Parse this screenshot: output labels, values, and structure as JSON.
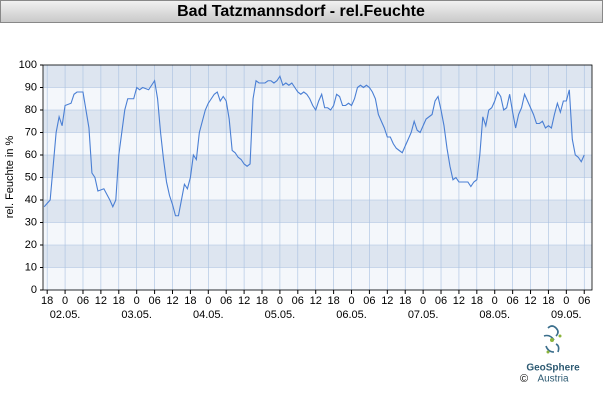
{
  "chart_data": {
    "type": "line",
    "title": "Bad Tatzmannsdorf - rel.Feuchte",
    "ylabel": "rel. Feuchte in %",
    "ylim": [
      0,
      100
    ],
    "yticks": [
      0,
      10,
      20,
      30,
      40,
      50,
      60,
      70,
      80,
      90,
      100
    ],
    "grid": true,
    "xlim": [
      16.6,
      200.6
    ],
    "xticks": [
      {
        "value": 18,
        "label": "18"
      },
      {
        "value": 24,
        "label": "0"
      },
      {
        "value": 30,
        "label": "06"
      },
      {
        "value": 36,
        "label": "12"
      },
      {
        "value": 42,
        "label": "18"
      },
      {
        "value": 48,
        "label": "0"
      },
      {
        "value": 54,
        "label": "06"
      },
      {
        "value": 60,
        "label": "12"
      },
      {
        "value": 66,
        "label": "18"
      },
      {
        "value": 72,
        "label": "0"
      },
      {
        "value": 78,
        "label": "06"
      },
      {
        "value": 84,
        "label": "12"
      },
      {
        "value": 90,
        "label": "18"
      },
      {
        "value": 96,
        "label": "0"
      },
      {
        "value": 102,
        "label": "06"
      },
      {
        "value": 108,
        "label": "12"
      },
      {
        "value": 114,
        "label": "18"
      },
      {
        "value": 120,
        "label": "0"
      },
      {
        "value": 126,
        "label": "06"
      },
      {
        "value": 132,
        "label": "12"
      },
      {
        "value": 138,
        "label": "18"
      },
      {
        "value": 144,
        "label": "0"
      },
      {
        "value": 150,
        "label": "06"
      },
      {
        "value": 156,
        "label": "12"
      },
      {
        "value": 162,
        "label": "18"
      },
      {
        "value": 168,
        "label": "0"
      },
      {
        "value": 174,
        "label": "06"
      },
      {
        "value": 180,
        "label": "12"
      },
      {
        "value": 186,
        "label": "18"
      },
      {
        "value": 192,
        "label": "0"
      },
      {
        "value": 198,
        "label": "06"
      }
    ],
    "date_ticks": [
      {
        "value": 24,
        "label": "02.05."
      },
      {
        "value": 48,
        "label": "03.05."
      },
      {
        "value": 72,
        "label": "04.05."
      },
      {
        "value": 96,
        "label": "05.05."
      },
      {
        "value": 120,
        "label": "06.05."
      },
      {
        "value": 144,
        "label": "07.05."
      },
      {
        "value": 168,
        "label": "08.05."
      },
      {
        "value": 192,
        "label": "09.05."
      }
    ],
    "series": [
      {
        "color": "#4a7fd4",
        "x": [
          17,
          19,
          21,
          22,
          23,
          24,
          26,
          27,
          28,
          30,
          32,
          33,
          34,
          35,
          37,
          39,
          40,
          41,
          42,
          43,
          44,
          45,
          47,
          48,
          49,
          50,
          52,
          53,
          54,
          55,
          56,
          57,
          58,
          59,
          60,
          61,
          62,
          63,
          64,
          65,
          66,
          67,
          68,
          69,
          70,
          71,
          72,
          73,
          74,
          75,
          76,
          77,
          78,
          79,
          80,
          81,
          82,
          83,
          84,
          85,
          86,
          87,
          88,
          89,
          90,
          91,
          92,
          93,
          94,
          95,
          96,
          97,
          98,
          99,
          100,
          101,
          102,
          103,
          104,
          105,
          106,
          107,
          108,
          109,
          110,
          111,
          112,
          113,
          114,
          115,
          116,
          117,
          118,
          119,
          120,
          121,
          122,
          123,
          124,
          125,
          126,
          127,
          128,
          129,
          130,
          131,
          132,
          133,
          134,
          135,
          136,
          137,
          138,
          139,
          140,
          141,
          142,
          143,
          144,
          145,
          146,
          147,
          148,
          149,
          150,
          151,
          152,
          153,
          154,
          155,
          156,
          157,
          158,
          159,
          160,
          161,
          162,
          163,
          164,
          165,
          166,
          167,
          168,
          169,
          170,
          171,
          172,
          173,
          174,
          175,
          176,
          177,
          178,
          179,
          180,
          181,
          182,
          183,
          184,
          185,
          186,
          187,
          188,
          189,
          190,
          191,
          192,
          193,
          194,
          195,
          196,
          197,
          198
        ],
        "values": [
          37,
          40,
          70,
          77,
          73,
          82,
          83,
          87,
          88,
          88,
          72,
          52,
          50,
          44,
          45,
          40,
          37,
          40,
          60,
          70,
          80,
          85,
          85,
          90,
          89,
          90,
          89,
          91,
          93,
          85,
          70,
          58,
          48,
          42,
          38,
          33,
          33,
          40,
          47,
          45,
          50,
          60,
          58,
          70,
          75,
          80,
          83,
          85,
          87,
          88,
          84,
          86,
          84,
          76,
          62,
          61,
          59,
          58,
          56,
          55,
          56,
          85,
          93,
          92,
          92,
          92,
          93,
          93,
          92,
          93,
          95,
          91,
          92,
          91,
          92,
          90,
          88,
          87,
          88,
          87,
          85,
          82,
          80,
          84,
          87,
          81,
          81,
          80,
          82,
          87,
          86,
          82,
          82,
          83,
          82,
          85,
          90,
          91,
          90,
          91,
          90,
          88,
          85,
          78,
          75,
          72,
          68,
          68,
          65,
          63,
          62,
          61,
          64,
          67,
          70,
          75,
          71,
          70,
          73,
          76,
          77,
          78,
          84,
          86,
          80,
          73,
          63,
          55,
          49,
          50,
          48,
          48,
          48,
          48,
          46,
          48,
          49,
          60,
          77,
          73,
          80,
          81,
          84,
          88,
          86,
          80,
          81,
          87,
          79,
          72,
          78,
          81,
          87,
          84,
          81,
          78,
          74,
          74,
          75,
          72,
          73,
          72,
          78,
          83,
          79,
          84,
          84,
          89,
          67,
          60,
          59,
          57,
          60
        ]
      }
    ]
  },
  "footer": {
    "copyright": "©",
    "logo_name": "GeoSphere",
    "logo_country": "Austria"
  }
}
